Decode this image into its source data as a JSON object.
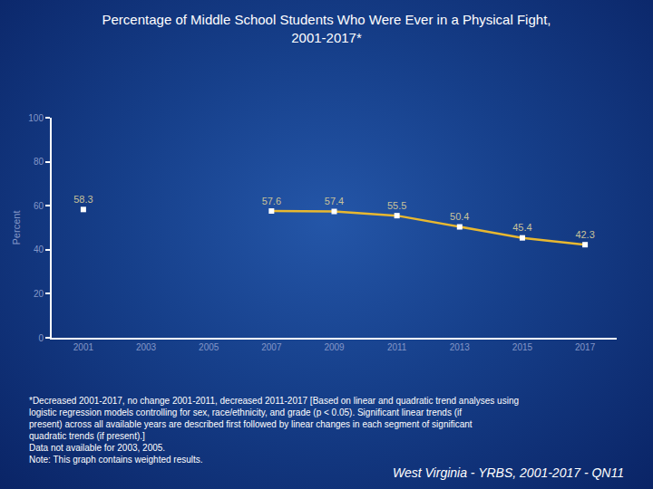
{
  "chart_data": {
    "type": "line",
    "title": [
      "Percentage of Middle School Students Who Were Ever in a Physical Fight,",
      "2001-2017*"
    ],
    "y_label": "Percent",
    "categories": [
      "2001",
      "2003",
      "2005",
      "2007",
      "2009",
      "2011",
      "2013",
      "2015",
      "2017"
    ],
    "values": [
      58.3,
      null,
      null,
      57.6,
      57.4,
      55.5,
      50.4,
      45.4,
      42.3
    ],
    "color": "#e8b830",
    "marker": "square",
    "ylim": [
      0,
      100
    ],
    "yticks": [
      0,
      20,
      40,
      60,
      80,
      100
    ],
    "grid": false,
    "data_labels": true,
    "notes": [
      "*Decreased 2001-2017, no change 2001-2011, decreased 2011-2017 [Based on linear and quadratic trend analyses using logistic regression models controlling for sex, race/ethnicity, and grade (p < 0.05). Significant linear trends (if present) across all available years are described first followed by linear changes in each segment of significant quadratic trends (if present).]",
      "Data not available for 2003, 2005.",
      "Note: This graph contains weighted results."
    ],
    "source": "West Virginia - YRBS, 2001-2017 - QN11"
  }
}
